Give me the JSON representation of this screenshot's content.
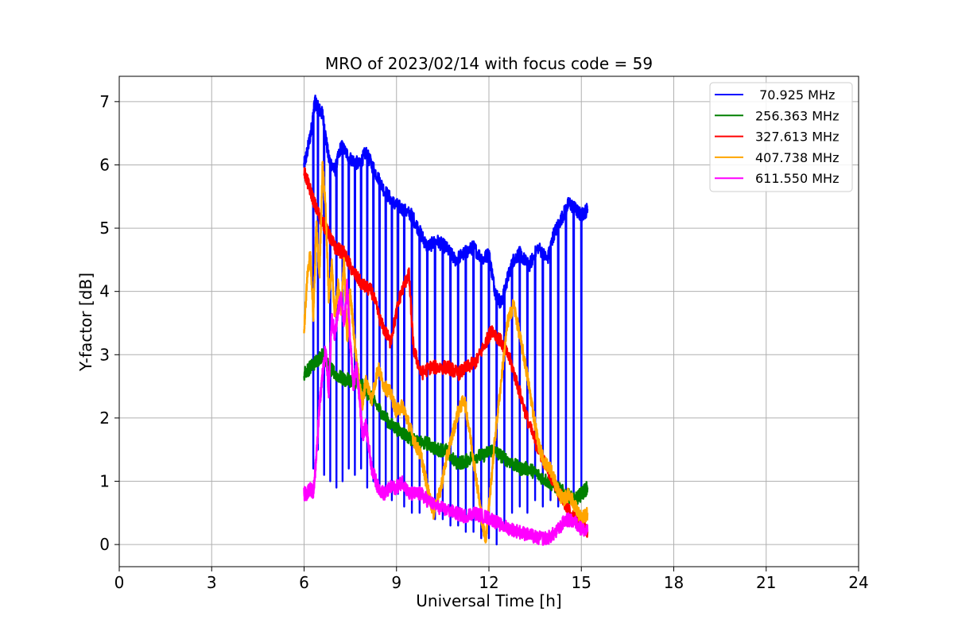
{
  "chart_data": {
    "type": "line",
    "title": "MRO of 2023/02/14 with focus code = 59",
    "xlabel": "Universal Time [h]",
    "ylabel": "Y-factor [dB]",
    "xlim": [
      0,
      24
    ],
    "ylim": [
      -0.35,
      7.4
    ],
    "xticks": [
      0,
      3,
      6,
      9,
      12,
      15,
      18,
      21,
      24
    ],
    "yticks": [
      0,
      1,
      2,
      3,
      4,
      5,
      6,
      7
    ],
    "grid": true,
    "legend_position": "top-right",
    "series": [
      {
        "name": " 70.925 MHz",
        "color": "#0000ff",
        "x": [
          6.0,
          6.1,
          6.25,
          6.35,
          6.45,
          6.6,
          6.8,
          7.0,
          7.2,
          7.5,
          7.8,
          8.0,
          8.3,
          8.6,
          8.9,
          9.2,
          9.5,
          9.8,
          10.0,
          10.3,
          10.6,
          10.9,
          11.2,
          11.5,
          11.8,
          12.0,
          12.2,
          12.4,
          12.6,
          12.8,
          13.0,
          13.3,
          13.6,
          13.9,
          14.1,
          14.4,
          14.6,
          14.8,
          15.0,
          15.2
        ],
        "y": [
          6.0,
          6.2,
          6.6,
          7.0,
          6.9,
          6.8,
          6.1,
          5.9,
          6.3,
          6.1,
          6.0,
          6.2,
          5.9,
          5.6,
          5.4,
          5.3,
          5.2,
          4.9,
          4.7,
          4.8,
          4.7,
          4.5,
          4.6,
          4.7,
          4.5,
          4.6,
          4.0,
          3.8,
          4.2,
          4.5,
          4.6,
          4.4,
          4.7,
          4.5,
          4.9,
          5.2,
          5.4,
          5.3,
          5.2,
          5.3
        ],
        "dips": [
          6.3,
          6.45,
          6.65,
          6.85,
          7.05,
          7.25,
          7.45,
          7.65,
          7.85,
          8.05,
          8.25,
          8.45,
          8.65,
          8.85,
          9.05,
          9.25,
          9.5,
          9.75,
          10.0,
          10.25,
          10.5,
          10.75,
          11.0,
          11.25,
          11.5,
          11.75,
          12.0,
          12.25,
          12.5,
          12.75,
          13.0,
          13.25,
          13.5,
          13.75,
          14.0,
          14.25,
          14.5,
          14.75,
          15.0
        ],
        "dip_y": [
          1.2,
          1.5,
          1.1,
          1.0,
          0.9,
          1.0,
          1.2,
          1.1,
          1.2,
          0.9,
          1.0,
          0.8,
          0.9,
          0.7,
          0.8,
          0.6,
          0.5,
          0.5,
          0.6,
          0.4,
          0.4,
          0.3,
          0.3,
          0.2,
          0.2,
          0.1,
          0.1,
          0.0,
          0.3,
          0.5,
          0.6,
          0.5,
          0.7,
          0.6,
          0.7,
          0.6,
          0.7,
          0.6,
          0.9
        ]
      },
      {
        "name": "256.363 MHz",
        "color": "#008000",
        "x": [
          6.0,
          6.2,
          6.4,
          6.6,
          6.8,
          7.0,
          7.3,
          7.6,
          7.9,
          8.2,
          8.5,
          8.8,
          9.1,
          9.4,
          9.7,
          10.0,
          10.3,
          10.6,
          10.9,
          11.2,
          11.5,
          11.8,
          12.1,
          12.4,
          12.7,
          13.0,
          13.3,
          13.6,
          13.9,
          14.2,
          14.5,
          14.8,
          15.0,
          15.2
        ],
        "y": [
          2.7,
          2.8,
          2.9,
          3.0,
          2.8,
          2.7,
          2.6,
          2.6,
          2.5,
          2.3,
          2.1,
          1.9,
          1.8,
          1.7,
          1.6,
          1.6,
          1.5,
          1.5,
          1.3,
          1.3,
          1.4,
          1.4,
          1.5,
          1.4,
          1.3,
          1.2,
          1.2,
          1.1,
          1.0,
          0.9,
          0.8,
          0.7,
          0.8,
          0.9
        ]
      },
      {
        "name": "327.613 MHz",
        "color": "#ff0000",
        "x": [
          6.0,
          6.2,
          6.4,
          6.6,
          6.8,
          7.0,
          7.3,
          7.6,
          7.9,
          8.2,
          8.5,
          8.8,
          9.1,
          9.4,
          9.55,
          9.8,
          10.1,
          10.4,
          10.7,
          11.0,
          11.3,
          11.6,
          11.9,
          12.1,
          12.4,
          12.7,
          13.0,
          13.3,
          13.6,
          13.9,
          14.2,
          14.5,
          14.8,
          15.0,
          15.2
        ],
        "y": [
          5.9,
          5.6,
          5.3,
          5.1,
          4.9,
          4.7,
          4.6,
          4.3,
          4.1,
          4.0,
          3.5,
          3.2,
          3.9,
          4.3,
          3.1,
          2.7,
          2.8,
          2.8,
          2.8,
          2.7,
          2.8,
          2.9,
          3.2,
          3.4,
          3.2,
          2.9,
          2.4,
          1.9,
          1.5,
          1.2,
          0.9,
          0.6,
          0.4,
          0.3,
          0.2
        ]
      },
      {
        "name": "407.738 MHz",
        "color": "#ffa500",
        "x": [
          6.0,
          6.1,
          6.2,
          6.3,
          6.4,
          6.5,
          6.6,
          6.7,
          6.8,
          6.9,
          7.0,
          7.1,
          7.2,
          7.3,
          7.4,
          7.5,
          7.6,
          7.7,
          7.8,
          7.9,
          8.0,
          8.2,
          8.4,
          8.6,
          8.8,
          9.0,
          9.2,
          9.4,
          9.6,
          9.8,
          10.0,
          10.2,
          10.4,
          10.6,
          10.8,
          11.0,
          11.2,
          11.4,
          11.6,
          11.8,
          11.9,
          12.0,
          12.2,
          12.4,
          12.6,
          12.8,
          13.0,
          13.2,
          13.4,
          13.6,
          13.8,
          14.0,
          14.2,
          14.4,
          14.6,
          14.8,
          15.0,
          15.2
        ],
        "y": [
          3.4,
          4.2,
          4.6,
          3.6,
          5.1,
          4.2,
          6.0,
          5.3,
          3.9,
          4.4,
          3.6,
          4.1,
          3.7,
          4.5,
          3.2,
          4.0,
          3.4,
          2.9,
          2.5,
          2.2,
          2.6,
          2.3,
          2.8,
          2.5,
          2.4,
          2.1,
          2.2,
          1.9,
          1.6,
          1.4,
          0.9,
          0.5,
          0.8,
          1.3,
          1.7,
          2.1,
          2.3,
          1.7,
          1.0,
          0.3,
          0.1,
          0.6,
          1.7,
          2.6,
          3.5,
          3.8,
          3.3,
          2.8,
          2.2,
          1.6,
          1.3,
          1.2,
          0.9,
          0.7,
          0.8,
          0.6,
          0.4,
          0.5
        ]
      },
      {
        "name": "611.550 MHz",
        "color": "#ff00ff",
        "x": [
          6.0,
          6.1,
          6.2,
          6.3,
          6.4,
          6.5,
          6.6,
          6.7,
          6.8,
          6.9,
          7.0,
          7.1,
          7.2,
          7.3,
          7.4,
          7.5,
          7.6,
          7.7,
          7.8,
          7.9,
          8.0,
          8.2,
          8.4,
          8.6,
          8.8,
          9.0,
          9.2,
          9.4,
          9.6,
          9.8,
          10.0,
          10.3,
          10.6,
          10.9,
          11.2,
          11.5,
          11.8,
          12.1,
          12.4,
          12.7,
          13.0,
          13.3,
          13.6,
          13.9,
          14.2,
          14.5,
          14.8,
          15.0,
          15.2
        ],
        "y": [
          0.8,
          0.8,
          0.9,
          0.8,
          1.4,
          2.2,
          2.7,
          3.1,
          2.4,
          3.6,
          3.3,
          3.7,
          3.9,
          3.5,
          4.1,
          3.2,
          2.5,
          2.8,
          2.3,
          1.7,
          1.9,
          1.2,
          0.9,
          0.8,
          0.9,
          0.9,
          1.0,
          0.8,
          0.8,
          0.8,
          0.7,
          0.6,
          0.55,
          0.5,
          0.45,
          0.5,
          0.45,
          0.4,
          0.3,
          0.25,
          0.2,
          0.15,
          0.1,
          0.1,
          0.2,
          0.4,
          0.35,
          0.25,
          0.2
        ]
      }
    ]
  }
}
